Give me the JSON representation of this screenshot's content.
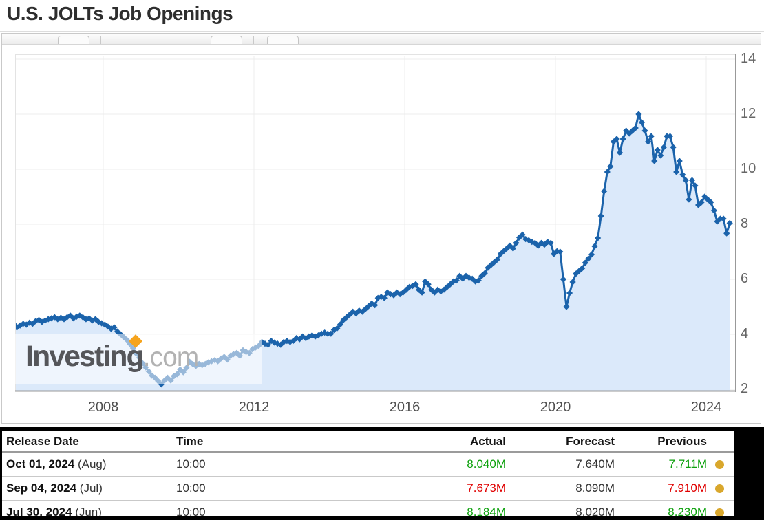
{
  "page": {
    "title": "U.S. JOLTs Job Openings"
  },
  "watermark": {
    "brand": "Investing",
    "suffix": ".com",
    "accent_color": "#f6a41d"
  },
  "palette": {
    "up": "#0da10d",
    "down": "#e00000",
    "neutral": "#333333",
    "dot": "#d9a72c",
    "line": "#1b63ab",
    "fill": "#dbe9fa"
  },
  "chart_data": {
    "type": "area",
    "title": "U.S. JOLTs Job Openings",
    "unit": "millions of job openings",
    "frequency": "monthly",
    "start": "2005-08",
    "end": "2024-08",
    "values": [
      4.3,
      4.25,
      4.32,
      4.38,
      4.35,
      4.42,
      4.38,
      4.48,
      4.52,
      4.45,
      4.5,
      4.55,
      4.58,
      4.62,
      4.55,
      4.6,
      4.55,
      4.62,
      4.68,
      4.58,
      4.64,
      4.68,
      4.62,
      4.55,
      4.58,
      4.5,
      4.55,
      4.45,
      4.4,
      4.35,
      4.28,
      4.2,
      4.25,
      4.1,
      4.0,
      3.9,
      3.8,
      3.65,
      3.5,
      3.3,
      3.15,
      2.95,
      2.8,
      2.65,
      2.5,
      2.42,
      2.3,
      2.18,
      2.32,
      2.42,
      2.32,
      2.48,
      2.55,
      2.72,
      2.62,
      2.78,
      3.0,
      2.92,
      2.85,
      2.92,
      2.88,
      2.92,
      2.98,
      3.02,
      3.06,
      3.02,
      3.12,
      3.18,
      3.08,
      3.22,
      3.28,
      3.32,
      3.22,
      3.42,
      3.36,
      3.32,
      3.46,
      3.52,
      3.58,
      3.72,
      3.66,
      3.62,
      3.76,
      3.7,
      3.66,
      3.62,
      3.72,
      3.76,
      3.72,
      3.76,
      3.86,
      3.82,
      3.92,
      3.86,
      3.92,
      3.96,
      3.92,
      3.96,
      4.02,
      4.06,
      4.02,
      4.02,
      4.16,
      4.22,
      4.36,
      4.52,
      4.62,
      4.72,
      4.82,
      4.76,
      4.86,
      4.82,
      4.92,
      5.02,
      5.12,
      5.06,
      5.32,
      5.36,
      5.32,
      5.52,
      5.46,
      5.42,
      5.52,
      5.46,
      5.52,
      5.62,
      5.72,
      5.76,
      5.82,
      5.62,
      5.52,
      5.92,
      5.82,
      5.62,
      5.52,
      5.62,
      5.56,
      5.62,
      5.72,
      5.82,
      5.92,
      5.96,
      6.12,
      6.02,
      6.12,
      6.06,
      6.02,
      5.92,
      5.96,
      6.12,
      6.22,
      6.42,
      6.52,
      6.62,
      6.72,
      6.92,
      7.02,
      7.12,
      7.22,
      7.12,
      7.32,
      7.52,
      7.62,
      7.46,
      7.42,
      7.36,
      7.32,
      7.22,
      7.32,
      7.26,
      7.36,
      7.32,
      6.92,
      7.02,
      7.0,
      6.0,
      5.0,
      5.5,
      5.9,
      6.2,
      6.3,
      6.4,
      6.6,
      6.75,
      6.9,
      7.2,
      7.5,
      8.3,
      9.2,
      9.9,
      10.1,
      11.0,
      11.1,
      10.6,
      11.1,
      11.4,
      11.3,
      11.4,
      11.5,
      12.0,
      11.7,
      11.4,
      11.0,
      11.2,
      10.3,
      10.7,
      10.5,
      10.8,
      11.2,
      11.2,
      10.8,
      9.9,
      10.3,
      9.8,
      9.6,
      8.9,
      9.6,
      9.4,
      8.7,
      8.8,
      9.0,
      8.9,
      8.8,
      8.5,
      8.1,
      8.2,
      8.2,
      7.67,
      8.04
    ],
    "x_ticks": [
      2008,
      2012,
      2016,
      2020,
      2024
    ],
    "y_ticks": [
      2,
      4,
      6,
      8,
      10,
      12,
      14
    ],
    "ylim": [
      1.95,
      14.2
    ],
    "xlim_years": [
      2005.6,
      2024.9
    ],
    "y_axis_side": "right",
    "grid": true,
    "legend": "none",
    "marker": "diamond",
    "line_color": "#1b63ab",
    "fill_color": "#dbe9fa"
  },
  "table": {
    "headers": [
      "Release Date",
      "Time",
      "Actual",
      "Forecast",
      "Previous"
    ],
    "rows": [
      {
        "date": "Oct 01, 2024",
        "period": "(Aug)",
        "time": "10:00",
        "actual": "8.040M",
        "actual_trend": "up",
        "forecast": "7.640M",
        "previous": "7.711M",
        "previous_trend": "up",
        "revised_dot": true
      },
      {
        "date": "Sep 04, 2024",
        "period": "(Jul)",
        "time": "10:00",
        "actual": "7.673M",
        "actual_trend": "down",
        "forecast": "8.090M",
        "previous": "7.910M",
        "previous_trend": "down",
        "revised_dot": true
      },
      {
        "date": "Jul 30, 2024",
        "period": "(Jun)",
        "time": "10:00",
        "actual": "8.184M",
        "actual_trend": "up",
        "forecast": "8.020M",
        "previous": "8.230M",
        "previous_trend": "up",
        "revised_dot": true
      }
    ]
  }
}
